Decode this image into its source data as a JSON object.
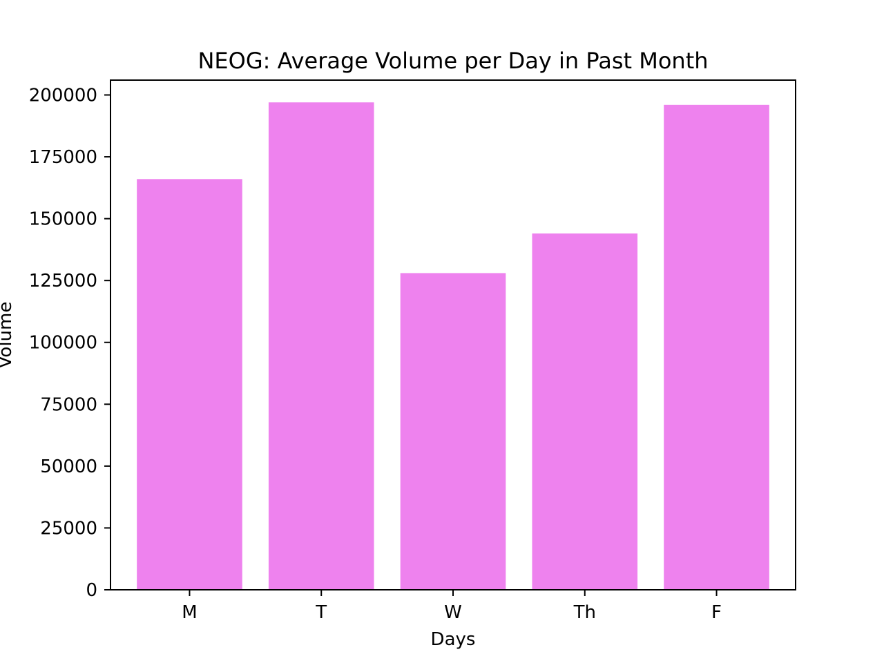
{
  "chart_data": {
    "type": "bar",
    "title": "NEOG: Average Volume per Day in Past Month",
    "xlabel": "Days",
    "ylabel": "Volume",
    "categories": [
      "M",
      "T",
      "W",
      "Th",
      "F"
    ],
    "values": [
      166000,
      197000,
      128000,
      144000,
      196000
    ],
    "ylim": [
      0,
      206000
    ],
    "yticks": [
      0,
      25000,
      50000,
      75000,
      100000,
      125000,
      150000,
      175000,
      200000
    ],
    "ytick_labels": [
      "0",
      "25000",
      "50000",
      "75000",
      "100000",
      "125000",
      "150000",
      "175000",
      "200000"
    ],
    "bar_color": "#ee82ee",
    "grid": false,
    "legend": "none"
  }
}
